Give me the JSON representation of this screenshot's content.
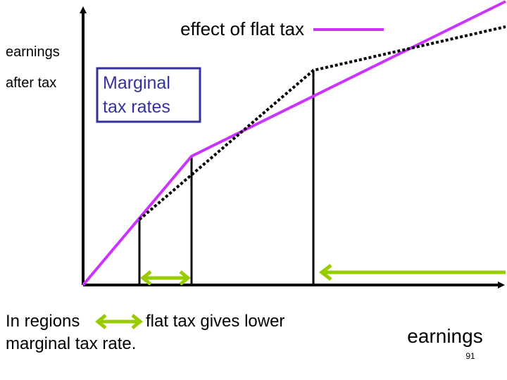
{
  "legend": {
    "label": "effect of flat tax"
  },
  "y_axis": {
    "label_line1": "earnings",
    "label_line2": "after tax"
  },
  "box": {
    "line1": "Marginal",
    "line2": "tax rates"
  },
  "caption": {
    "part1": "In regions",
    "part2": "flat tax gives lower",
    "line2": "marginal tax rate."
  },
  "x_axis": {
    "label": "earnings"
  },
  "page_number": "91"
}
